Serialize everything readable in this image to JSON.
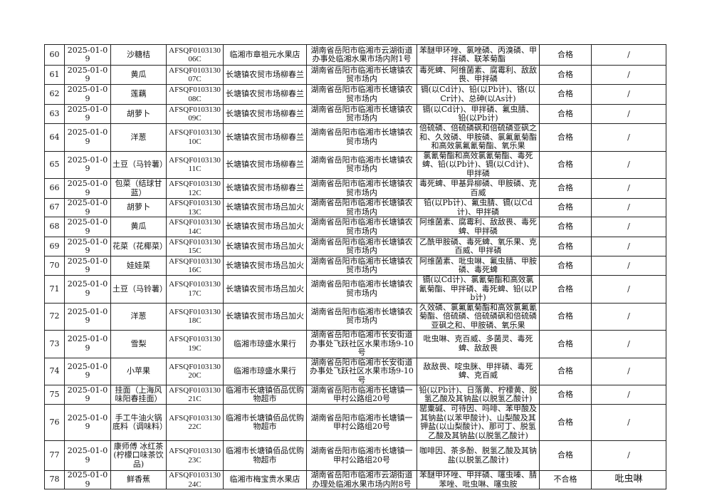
{
  "rows": [
    {
      "no": "60",
      "date": "2025-01-09",
      "name": "沙糖桔",
      "code": "AFSQF010313006C",
      "market": "临湘市章祖元水果店",
      "address": "湖南省岳阳市临湘市云湖街道办事处临湘水果市场内附1号",
      "items": "苯醚甲环唑、氯唑磷、丙溴磷、甲拌磷、联苯菊酯",
      "result": "合格",
      "failed": "/"
    },
    {
      "no": "61",
      "date": "2025-01-09",
      "name": "黄瓜",
      "code": "AFSQF010313007C",
      "market": "长塘镇农贸市场柳春兰",
      "address": "湖南省岳阳市临湘市长塘镇农贸市场内",
      "items": "毒死蜱、阿维菌素、腐霉利、敌敌畏、甲拌磷",
      "result": "合格",
      "failed": "/"
    },
    {
      "no": "62",
      "date": "2025-01-09",
      "name": "莲藕",
      "code": "AFSQF010313008C",
      "market": "长塘镇农贸市场柳春兰",
      "address": "湖南省岳阳市临湘市长塘镇农贸市场内",
      "items": "镉(以Cd计)、铅(以Pb计)、铬(以Cr计)、总砷(以As计)",
      "result": "合格",
      "failed": "/"
    },
    {
      "no": "63",
      "date": "2025-01-09",
      "name": "胡萝卜",
      "code": "AFSQF010313009C",
      "market": "长塘镇农贸市场柳春兰",
      "address": "湖南省岳阳市临湘市长塘镇农贸市场内",
      "items": "镉(以Cd计)、甲拌磷、氟虫腈、铅(以Pb计)",
      "result": "合格",
      "failed": "/"
    },
    {
      "no": "64",
      "date": "2025-01-09",
      "name": "洋葱",
      "code": "AFSQF010313010C",
      "market": "长塘镇农贸市场柳春兰",
      "address": "湖南省岳阳市临湘市长塘镇农贸市场内",
      "items": "倍硫磷、倍硫磷砜和倍硫磷亚砜之和、久效磷、甲胺磷、氯氟氰菊酯和高效氯氟氰菊酯、氧乐果",
      "result": "合格",
      "failed": "/"
    },
    {
      "no": "65",
      "date": "2025-01-09",
      "name": "土豆（马铃薯）",
      "code": "AFSQF010313011C",
      "market": "长塘镇农贸市场柳春兰",
      "address": "湖南省岳阳市临湘市长塘镇农贸市场内",
      "items": "氯氰菊酯和高效氯氰菊酯、毒死蜱、铅(以Pb计)、镉(以Cd计)、甲拌磷",
      "result": "合格",
      "failed": "/"
    },
    {
      "no": "66",
      "date": "2025-01-09",
      "name": "包菜（结球甘蓝）",
      "code": "AFSQF010313012C",
      "market": "长塘镇农贸市场柳春兰",
      "address": "湖南省岳阳市临湘市长塘镇农贸市场内",
      "items": "毒死蜱、甲基异柳磷、甲胺磷、克百威",
      "result": "合格",
      "failed": "/"
    },
    {
      "no": "67",
      "date": "2025-01-09",
      "name": "胡萝卜",
      "code": "AFSQF010313013C",
      "market": "长塘镇农贸市场吕加火",
      "address": "湖南省岳阳市临湘市长塘镇农贸市场内",
      "items": "铅(以Pb计)、氟虫腈、镉(以Cd计)、甲拌磷",
      "result": "合格",
      "failed": "/"
    },
    {
      "no": "68",
      "date": "2025-01-09",
      "name": "黄瓜",
      "code": "AFSQF010313014C",
      "market": "长塘镇农贸市场吕加火",
      "address": "湖南省岳阳市临湘市长塘镇农贸市场内",
      "items": "阿维菌素、腐霉利、敌敌畏、毒死蜱、甲拌磷",
      "result": "合格",
      "failed": "/"
    },
    {
      "no": "69",
      "date": "2025-01-09",
      "name": "花菜（花椰菜）",
      "code": "AFSQF010313015C",
      "market": "长塘镇农贸市场吕加火",
      "address": "湖南省岳阳市临湘市长塘镇农贸市场内",
      "items": "乙酰甲胺磷、毒死蜱、氧乐果、克百威、甲拌磷",
      "result": "合格",
      "failed": "/"
    },
    {
      "no": "70",
      "date": "2025-01-09",
      "name": "娃娃菜",
      "code": "AFSQF010313016C",
      "market": "长塘镇农贸市场吕加火",
      "address": "湖南省岳阳市临湘市长塘镇农贸市场内",
      "items": "阿维菌素、吡虫啉、氟虫腈、甲胺磷、毒死蜱",
      "result": "合格",
      "failed": "/"
    },
    {
      "no": "71",
      "date": "2025-01-09",
      "name": "土豆（马铃薯）",
      "code": "AFSQF010313017C",
      "market": "长塘镇农贸市场吕加火",
      "address": "湖南省岳阳市临湘市长塘镇农贸市场内",
      "items": "镉(以Cd计)、氯氰菊酯和高效氯氰菊酯、甲拌磷、毒死蜱、铅(以Pb计)",
      "result": "合格",
      "failed": "/"
    },
    {
      "no": "72",
      "date": "2025-01-09",
      "name": "洋葱",
      "code": "AFSQF010313018C",
      "market": "长塘镇农贸市场吕加火",
      "address": "湖南省岳阳市临湘市长塘镇农贸市场内",
      "items": "久效磷、氯氟氰菊酯和高效氯氟氰菊酯、倍硫磷、倍硫磷砜和倍硫磷亚砜之和、甲胺磷、氧乐果",
      "result": "合格",
      "failed": "/"
    },
    {
      "no": "73",
      "date": "2025-01-09",
      "name": "雪梨",
      "code": "AFSQF010313019C",
      "market": "临湘市琼盛水果行",
      "address": "湖南省岳阳市临湘市长安街道办事处飞跃社区水果市场9-10号",
      "items": "吡虫啉、克百威、多菌灵、毒死蜱、敌敌畏",
      "result": "合格",
      "failed": "/"
    },
    {
      "no": "74",
      "date": "2025-01-09",
      "name": "小苹果",
      "code": "AFSQF010313020C",
      "market": "临湘市琼盛水果行",
      "address": "湖南省岳阳市临湘市长安街道办事处飞跃社区水果市场9-10号",
      "items": "敌敌畏、啶虫脒、甲拌磷、毒死蜱、克百威",
      "result": "合格",
      "failed": "/"
    },
    {
      "no": "75",
      "date": "2025-01-09",
      "name": "挂面（上海风味阳春挂面）",
      "code": "AFSQF010313021C",
      "market": "临湘市长塘镇佰品优购物超市",
      "address": "湖南省岳阳市临湘市长塘镇一甲村公路组20号",
      "items": "铅(以Pb计)、日落黄、柠檬黄、脱氢乙酸及其钠盐(以脱氢乙酸计)",
      "result": "合格",
      "failed": "/"
    },
    {
      "no": "76",
      "date": "2025-01-09",
      "name": "手工牛油火锅底料（调味料）",
      "code": "AFSQF010313022C",
      "market": "临湘市长塘镇佰品优购物超市",
      "address": "湖南省岳阳市临湘市长塘镇一甲村公路组20号",
      "items": "罂粟碱、可待因、吗啡、苯甲酸及其钠盐(以苯甲酸计)、山梨酸及其钾盐(以山梨酸计)、那可丁、脱氢乙酸及其钠盐(以脱氢乙酸计)",
      "result": "合格",
      "failed": "/"
    },
    {
      "no": "77",
      "date": "2025-01-09",
      "name": "康师傅 冰红茶(柠檬口味茶饮品)",
      "code": "AFSQF010313023C",
      "market": "临湘市长塘镇佰品优购物超市",
      "address": "湖南省岳阳市临湘市长塘镇一甲村公路组20号",
      "items": "咖啡因、茶多酚、脱氢乙酸及其钠盐(以脱氢乙酸计)",
      "result": "合格",
      "failed": "/"
    },
    {
      "no": "78",
      "date": "2025-01-09",
      "name": "鲜香蕉",
      "code": "AFSQF010313024C",
      "market": "临湘市梅宝贵水果店",
      "address": "湖南省岳阳市临湘市云湖街道办理处临湘水果市场内附8号",
      "items": "苯醚甲环唑、甲拌磷、噻虫嗪、腈苯唑、吡虫啉、噻虫胺",
      "result": "不合格",
      "failed": "吡虫啉"
    }
  ]
}
